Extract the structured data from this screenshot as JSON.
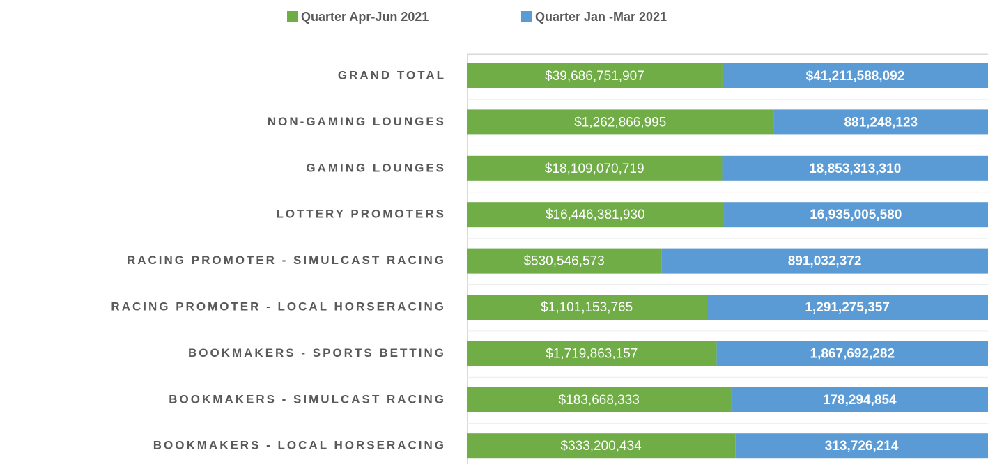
{
  "chart_data": {
    "type": "bar",
    "orientation": "horizontal",
    "stacking": "percent",
    "legend": "top",
    "categories": [
      "GRAND TOTAL",
      "NON-GAMING LOUNGES",
      "GAMING LOUNGES",
      "LOTTERY PROMOTERS",
      "RACING PROMOTER - SIMULCAST RACING",
      "RACING PROMOTER - LOCAL HORSERACING",
      "BOOKMAKERS - SPORTS BETTING",
      "BOOKMAKERS - SIMULCAST RACING",
      "BOOKMAKERS - LOCAL HORSERACING"
    ],
    "series": [
      {
        "name": "Quarter Apr-Jun 2021",
        "color": "#70ad47",
        "values": [
          39686751907,
          1262866995,
          18109070719,
          16446381930,
          530546573,
          1101153765,
          1719863157,
          183668333,
          333200434
        ],
        "value_labels": [
          "$39,686,751,907",
          "$1,262,866,995",
          "$18,109,070,719",
          "$16,446,381,930",
          "$530,546,573",
          "$1,101,153,765",
          "$1,719,863,157",
          "$183,668,333",
          "$333,200,434"
        ]
      },
      {
        "name": "Quarter Jan -Mar 2021",
        "color": "#5b9bd5",
        "values": [
          41211588092,
          881248123,
          18853313310,
          16935005580,
          891032372,
          1291275357,
          1867692282,
          178294854,
          313726214
        ],
        "value_labels": [
          "$41,211,588,092",
          "881,248,123",
          "18,853,313,310",
          "16,935,005,580",
          "891,032,372",
          "1,291,275,357",
          "1,867,692,282",
          "178,294,854",
          "313,726,214"
        ]
      }
    ]
  }
}
